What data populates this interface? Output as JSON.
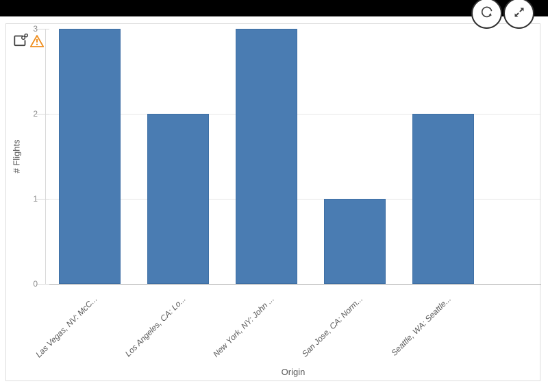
{
  "top_bar": {
    "background": "#000000"
  },
  "toolbar": {
    "refresh_button": {
      "icon": "refresh-icon"
    },
    "expand_button": {
      "icon": "expand-icon"
    }
  },
  "chart_header": {
    "linked_object_icon": "linked-object-icon",
    "warning_icon": "warning-icon",
    "warning_color": "#ef8e1e",
    "icon_color": "#404040"
  },
  "chart_data": {
    "type": "bar",
    "categories": [
      "Las Vegas, NV: McC...",
      "Los Angeles, CA: Lo...",
      "New York, NY: John ...",
      "San Jose, CA: Norm...",
      "Seattle, WA: Seattle..."
    ],
    "values": [
      3,
      2,
      3,
      1,
      2
    ],
    "title": "",
    "xlabel": "Origin",
    "ylabel": "# Flights",
    "ylim": [
      0,
      3
    ],
    "yticks": [
      "0",
      "1",
      "2",
      "3"
    ],
    "bar_color": "#4a7cb2",
    "bar_border_color": "#3e6fa4",
    "grid": true,
    "legend": false
  }
}
